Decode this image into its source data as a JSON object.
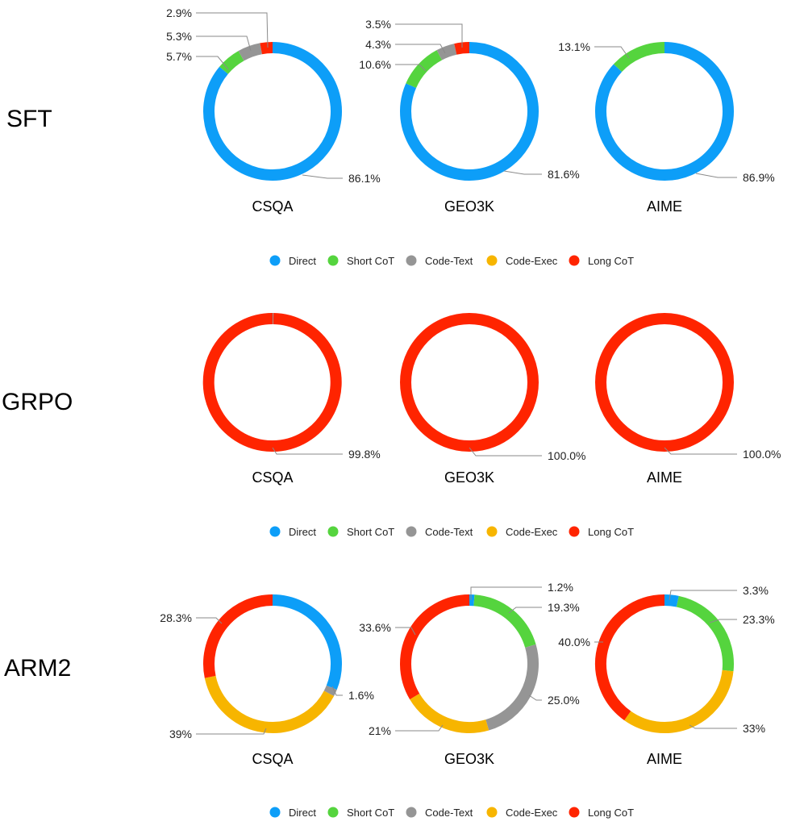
{
  "categories": [
    "Direct",
    "Short CoT",
    "Code-Text",
    "Code-Exec",
    "Long CoT"
  ],
  "colors": {
    "Direct": "#0d9ef8",
    "Short CoT": "#55d43e",
    "Code-Text": "#959595",
    "Code-Exec": "#f7b500",
    "Long CoT": "#ff2400"
  },
  "icons": {
    "legend_marker": "circle-icon"
  },
  "chart_data": [
    {
      "type": "pie",
      "method": "SFT",
      "title": "CSQA",
      "values": [
        86.1,
        5.7,
        5.3,
        0,
        2.9
      ],
      "labels": [
        "86.1%",
        "5.7%",
        "5.3%",
        "",
        "2.9%"
      ]
    },
    {
      "type": "pie",
      "method": "SFT",
      "title": "GEO3K",
      "values": [
        81.6,
        10.6,
        4.3,
        0,
        3.5
      ],
      "labels": [
        "81.6%",
        "10.6%",
        "4.3%",
        "",
        "3.5%"
      ]
    },
    {
      "type": "pie",
      "method": "SFT",
      "title": "AIME",
      "values": [
        86.9,
        13.1,
        0,
        0,
        0
      ],
      "labels": [
        "86.9%",
        "13.1%",
        "",
        "",
        ""
      ]
    },
    {
      "type": "pie",
      "method": "GRPO",
      "title": "CSQA",
      "values": [
        0,
        0,
        0.2,
        0,
        99.8
      ],
      "labels": [
        "",
        "",
        "",
        "",
        "99.8%"
      ]
    },
    {
      "type": "pie",
      "method": "GRPO",
      "title": "GEO3K",
      "values": [
        0,
        0,
        0,
        0,
        100.0
      ],
      "labels": [
        "",
        "",
        "",
        "",
        "100.0%"
      ]
    },
    {
      "type": "pie",
      "method": "GRPO",
      "title": "AIME",
      "values": [
        0,
        0,
        0,
        0,
        100.0
      ],
      "labels": [
        "",
        "",
        "",
        "",
        "100.0%"
      ]
    },
    {
      "type": "pie",
      "method": "ARM2",
      "title": "CSQA",
      "values": [
        31.1,
        0,
        1.6,
        39,
        28.3
      ],
      "labels": [
        "",
        "",
        "1.6%",
        "39%",
        "28.3%"
      ]
    },
    {
      "type": "pie",
      "method": "ARM2",
      "title": "GEO3K",
      "values": [
        1.2,
        19.3,
        25.0,
        21,
        33.6
      ],
      "labels": [
        "1.2%",
        "19.3%",
        "25.0%",
        "21%",
        "33.6%"
      ]
    },
    {
      "type": "pie",
      "method": "ARM2",
      "title": "AIME",
      "values": [
        3.3,
        23.3,
        0,
        33,
        40.0
      ],
      "labels": [
        "3.3%",
        "23.3%",
        "",
        "33%",
        "40.0%"
      ]
    }
  ],
  "rows": [
    "SFT",
    "GRPO",
    "ARM2"
  ]
}
